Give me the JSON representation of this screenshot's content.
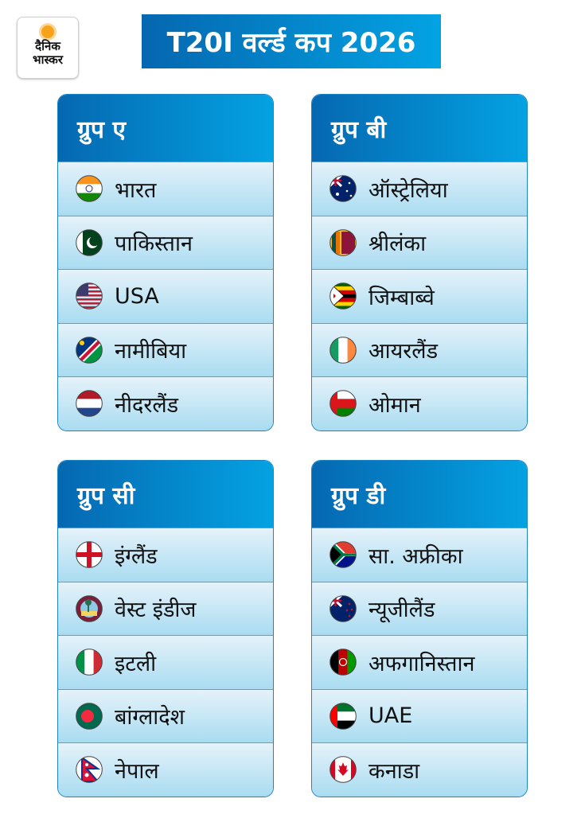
{
  "logo": {
    "line1": "दैनिक",
    "line2": "भास्कर",
    "icon": "sun-icon",
    "sun_color": "#f7a21b"
  },
  "title": "T20I वर्ल्ड कप 2026",
  "colors": {
    "header_start": "#0568b1",
    "header_end": "#04a2e2",
    "row_top": "#e5f2fa",
    "row_bottom": "#a9dcf1"
  },
  "groups": [
    {
      "name": "ग्रुप ए",
      "teams": [
        {
          "name": "भारत",
          "flag": "india-flag-icon"
        },
        {
          "name": "पाकिस्तान",
          "flag": "pakistan-flag-icon"
        },
        {
          "name": "USA",
          "flag": "usa-flag-icon"
        },
        {
          "name": "नामीबिया",
          "flag": "namibia-flag-icon"
        },
        {
          "name": "नीदरलैंड",
          "flag": "netherlands-flag-icon"
        }
      ]
    },
    {
      "name": "ग्रुप बी",
      "teams": [
        {
          "name": "ऑस्ट्रेलिया",
          "flag": "australia-flag-icon"
        },
        {
          "name": "श्रीलंका",
          "flag": "srilanka-flag-icon"
        },
        {
          "name": "जिम्बाब्वे",
          "flag": "zimbabwe-flag-icon"
        },
        {
          "name": "आयरलैंड",
          "flag": "ireland-flag-icon"
        },
        {
          "name": "ओमान",
          "flag": "oman-flag-icon"
        }
      ]
    },
    {
      "name": "ग्रुप सी",
      "teams": [
        {
          "name": "इंग्लैंड",
          "flag": "england-flag-icon"
        },
        {
          "name": "वेस्ट इंडीज",
          "flag": "westindies-flag-icon"
        },
        {
          "name": "इटली",
          "flag": "italy-flag-icon"
        },
        {
          "name": "बांग्लादेश",
          "flag": "bangladesh-flag-icon"
        },
        {
          "name": "नेपाल",
          "flag": "nepal-flag-icon"
        }
      ]
    },
    {
      "name": "ग्रुप डी",
      "teams": [
        {
          "name": "सा. अफ्रीका",
          "flag": "southafrica-flag-icon"
        },
        {
          "name": "न्यूजीलैंड",
          "flag": "newzealand-flag-icon"
        },
        {
          "name": "अफगानिस्तान",
          "flag": "afghanistan-flag-icon"
        },
        {
          "name": "UAE",
          "flag": "uae-flag-icon"
        },
        {
          "name": "कनाडा",
          "flag": "canada-flag-icon"
        }
      ]
    }
  ]
}
